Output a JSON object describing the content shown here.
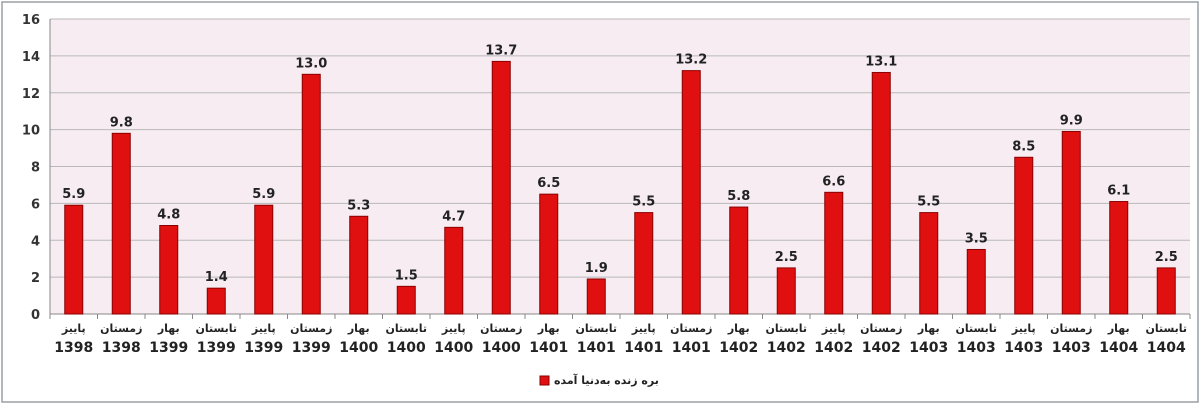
{
  "chart_data": {
    "type": "bar",
    "categories": [
      [
        "پاییز",
        "1398"
      ],
      [
        "زمستان",
        "1398"
      ],
      [
        "بهار",
        "1399"
      ],
      [
        "تابستان",
        "1399"
      ],
      [
        "پاییز",
        "1399"
      ],
      [
        "زمستان",
        "1399"
      ],
      [
        "بهار",
        "1400"
      ],
      [
        "تابستان",
        "1400"
      ],
      [
        "پاییز",
        "1400"
      ],
      [
        "زمستان",
        "1400"
      ],
      [
        "بهار",
        "1401"
      ],
      [
        "تابستان",
        "1401"
      ],
      [
        "پاییز",
        "1401"
      ],
      [
        "زمستان",
        "1401"
      ],
      [
        "بهار",
        "1402"
      ],
      [
        "تابستان",
        "1402"
      ],
      [
        "پاییز",
        "1402"
      ],
      [
        "زمستان",
        "1402"
      ],
      [
        "بهار",
        "1403"
      ],
      [
        "تابستان",
        "1403"
      ],
      [
        "پاییز",
        "1403"
      ],
      [
        "زمستان",
        "1403"
      ],
      [
        "بهار",
        "1404"
      ],
      [
        "تابستان",
        "1404"
      ]
    ],
    "series": [
      {
        "name": "بره زنده به‌دنیا آمده",
        "values": [
          5.9,
          9.8,
          4.8,
          1.4,
          5.9,
          13.0,
          5.3,
          1.5,
          4.7,
          13.7,
          6.5,
          1.9,
          5.5,
          13.2,
          5.8,
          2.5,
          6.6,
          13.1,
          5.5,
          3.5,
          8.5,
          9.9,
          6.1,
          2.5
        ],
        "labels": [
          "5.9",
          "9.8",
          "4.8",
          "1.4",
          "5.9",
          "13.0",
          "5.3",
          "1.5",
          "4.7",
          "13.7",
          "6.5",
          "1.9",
          "5.5",
          "13.2",
          "5.8",
          "2.5",
          "6.6",
          "13.1",
          "5.5",
          "3.5",
          "8.5",
          "9.9",
          "6.1",
          "2.5"
        ]
      }
    ],
    "ylim": [
      0,
      16
    ],
    "yticks": [
      "0",
      "2",
      "4",
      "6",
      "8",
      "10",
      "12",
      "14",
      "16"
    ],
    "grid": true,
    "legend_position": "bottom-center",
    "colors": {
      "bar_fill": "#e01010",
      "bar_stroke": "#8a0000",
      "plot_background": "#f6ecf1",
      "gridline": "#b9b9b9",
      "axis": "#888888"
    }
  }
}
